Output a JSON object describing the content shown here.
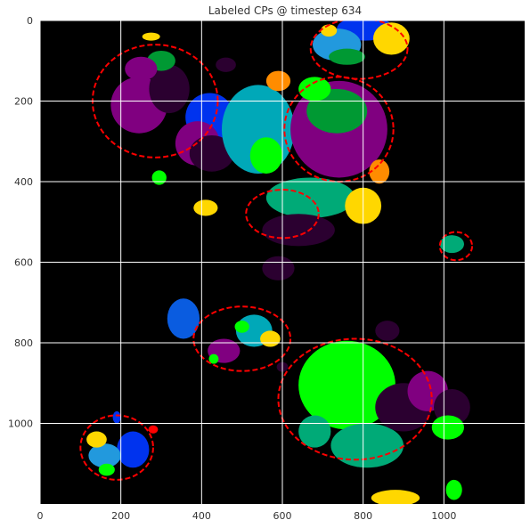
{
  "chart_data": {
    "type": "heatmap",
    "title": "Labeled CPs @ timestep 634",
    "xlabel": "",
    "ylabel": "",
    "xlim": [
      0,
      1200
    ],
    "ylim": [
      1200,
      0
    ],
    "x_ticks": [
      0,
      200,
      400,
      600,
      800,
      1000
    ],
    "y_ticks": [
      0,
      200,
      400,
      600,
      800,
      1000
    ],
    "x_tick_labels": [
      "0",
      "200",
      "400",
      "600",
      "800",
      "1000"
    ],
    "y_tick_labels": [
      "0",
      "200",
      "400",
      "600",
      "800",
      "1000"
    ],
    "grid": true,
    "background_color": "#000000",
    "colors": {
      "red": "#ff0000",
      "yellow": "#ffd700",
      "green": "#00ff00",
      "dark_green": "#009933",
      "teal": "#00a8b8",
      "sea_green": "#00aa77",
      "blue": "#0033ee",
      "royal_blue": "#0a5ce0",
      "purple": "#800080",
      "dark_purple": "#2b0030",
      "orange": "#ff8c00",
      "light_blue": "#2299dd"
    },
    "regions": [
      {
        "cx": 1020,
        "cy": 555,
        "rx": 30,
        "ry": 22,
        "color": "sea_green"
      },
      {
        "cx": 805,
        "cy": 20,
        "rx": 70,
        "ry": 30,
        "color": "blue"
      },
      {
        "cx": 735,
        "cy": 60,
        "rx": 60,
        "ry": 40,
        "color": "light_blue"
      },
      {
        "cx": 760,
        "cy": 90,
        "rx": 45,
        "ry": 20,
        "color": "dark_green"
      },
      {
        "cx": 870,
        "cy": 45,
        "rx": 45,
        "ry": 40,
        "color": "yellow"
      },
      {
        "cx": 715,
        "cy": 25,
        "rx": 20,
        "ry": 15,
        "color": "yellow"
      },
      {
        "cx": 245,
        "cy": 210,
        "rx": 70,
        "ry": 70,
        "color": "purple"
      },
      {
        "cx": 320,
        "cy": 170,
        "rx": 50,
        "ry": 60,
        "color": "dark_purple"
      },
      {
        "cx": 420,
        "cy": 240,
        "rx": 60,
        "ry": 60,
        "color": "blue"
      },
      {
        "cx": 390,
        "cy": 305,
        "rx": 55,
        "ry": 55,
        "color": "purple"
      },
      {
        "cx": 300,
        "cy": 100,
        "rx": 35,
        "ry": 25,
        "color": "dark_green"
      },
      {
        "cx": 250,
        "cy": 120,
        "rx": 40,
        "ry": 30,
        "color": "purple"
      },
      {
        "cx": 425,
        "cy": 330,
        "rx": 55,
        "ry": 45,
        "color": "dark_purple"
      },
      {
        "cx": 540,
        "cy": 270,
        "rx": 90,
        "ry": 110,
        "color": "teal"
      },
      {
        "cx": 560,
        "cy": 335,
        "rx": 40,
        "ry": 45,
        "color": "green"
      },
      {
        "cx": 740,
        "cy": 270,
        "rx": 120,
        "ry": 120,
        "color": "purple"
      },
      {
        "cx": 735,
        "cy": 225,
        "rx": 75,
        "ry": 55,
        "color": "dark_green"
      },
      {
        "cx": 680,
        "cy": 170,
        "rx": 40,
        "ry": 30,
        "color": "green"
      },
      {
        "cx": 670,
        "cy": 440,
        "rx": 110,
        "ry": 50,
        "color": "sea_green"
      },
      {
        "cx": 800,
        "cy": 460,
        "rx": 45,
        "ry": 45,
        "color": "yellow"
      },
      {
        "cx": 640,
        "cy": 520,
        "rx": 90,
        "ry": 40,
        "color": "dark_purple"
      },
      {
        "cx": 280,
        "cy": 1015,
        "rx": 12,
        "ry": 10,
        "color": "red"
      },
      {
        "cx": 880,
        "cy": 1185,
        "rx": 60,
        "ry": 20,
        "color": "yellow"
      },
      {
        "cx": 355,
        "cy": 740,
        "rx": 40,
        "ry": 50,
        "color": "royal_blue"
      },
      {
        "cx": 455,
        "cy": 820,
        "rx": 40,
        "ry": 30,
        "color": "purple"
      },
      {
        "cx": 530,
        "cy": 770,
        "rx": 45,
        "ry": 40,
        "color": "teal"
      },
      {
        "cx": 570,
        "cy": 790,
        "rx": 25,
        "ry": 20,
        "color": "yellow"
      },
      {
        "cx": 500,
        "cy": 760,
        "rx": 18,
        "ry": 15,
        "color": "green"
      },
      {
        "cx": 760,
        "cy": 905,
        "rx": 120,
        "ry": 110,
        "color": "green"
      },
      {
        "cx": 810,
        "cy": 1055,
        "rx": 90,
        "ry": 55,
        "color": "sea_green"
      },
      {
        "cx": 900,
        "cy": 960,
        "rx": 70,
        "ry": 60,
        "color": "dark_purple"
      },
      {
        "cx": 960,
        "cy": 920,
        "rx": 50,
        "ry": 50,
        "color": "purple"
      },
      {
        "cx": 1020,
        "cy": 960,
        "rx": 45,
        "ry": 45,
        "color": "dark_purple"
      },
      {
        "cx": 1010,
        "cy": 1010,
        "rx": 40,
        "ry": 30,
        "color": "green"
      },
      {
        "cx": 680,
        "cy": 1020,
        "rx": 40,
        "ry": 40,
        "color": "sea_green"
      },
      {
        "cx": 230,
        "cy": 1065,
        "rx": 40,
        "ry": 45,
        "color": "blue"
      },
      {
        "cx": 160,
        "cy": 1080,
        "rx": 40,
        "ry": 30,
        "color": "light_blue"
      },
      {
        "cx": 140,
        "cy": 1040,
        "rx": 25,
        "ry": 20,
        "color": "yellow"
      },
      {
        "cx": 165,
        "cy": 1115,
        "rx": 20,
        "ry": 15,
        "color": "green"
      },
      {
        "cx": 190,
        "cy": 985,
        "rx": 10,
        "ry": 15,
        "color": "blue"
      },
      {
        "cx": 410,
        "cy": 465,
        "rx": 30,
        "ry": 20,
        "color": "yellow"
      },
      {
        "cx": 295,
        "cy": 390,
        "rx": 18,
        "ry": 18,
        "color": "green"
      },
      {
        "cx": 1025,
        "cy": 1165,
        "rx": 20,
        "ry": 25,
        "color": "green"
      },
      {
        "cx": 275,
        "cy": 40,
        "rx": 22,
        "ry": 10,
        "color": "yellow"
      },
      {
        "cx": 460,
        "cy": 110,
        "rx": 25,
        "ry": 18,
        "color": "dark_purple"
      },
      {
        "cx": 590,
        "cy": 150,
        "rx": 30,
        "ry": 25,
        "color": "orange"
      },
      {
        "cx": 840,
        "cy": 375,
        "rx": 25,
        "ry": 30,
        "color": "orange"
      },
      {
        "cx": 430,
        "cy": 840,
        "rx": 12,
        "ry": 12,
        "color": "green"
      },
      {
        "cx": 600,
        "cy": 860,
        "rx": 14,
        "ry": 12,
        "color": "dark_purple"
      },
      {
        "cx": 590,
        "cy": 615,
        "rx": 40,
        "ry": 30,
        "color": "dark_purple"
      },
      {
        "cx": 860,
        "cy": 770,
        "rx": 30,
        "ry": 25,
        "color": "dark_purple"
      }
    ],
    "outlines": [
      {
        "cx": 285,
        "cy": 200,
        "rx": 155,
        "ry": 140,
        "color": "red"
      },
      {
        "cx": 740,
        "cy": 270,
        "rx": 135,
        "ry": 130,
        "color": "red"
      },
      {
        "cx": 790,
        "cy": 70,
        "rx": 120,
        "ry": 75,
        "color": "red"
      },
      {
        "cx": 780,
        "cy": 940,
        "rx": 190,
        "ry": 150,
        "color": "red"
      },
      {
        "cx": 190,
        "cy": 1060,
        "rx": 90,
        "ry": 80,
        "color": "red"
      },
      {
        "cx": 500,
        "cy": 790,
        "rx": 120,
        "ry": 80,
        "color": "red"
      },
      {
        "cx": 1030,
        "cy": 560,
        "rx": 40,
        "ry": 35,
        "color": "red"
      },
      {
        "cx": 600,
        "cy": 480,
        "rx": 90,
        "ry": 60,
        "color": "red"
      }
    ]
  }
}
